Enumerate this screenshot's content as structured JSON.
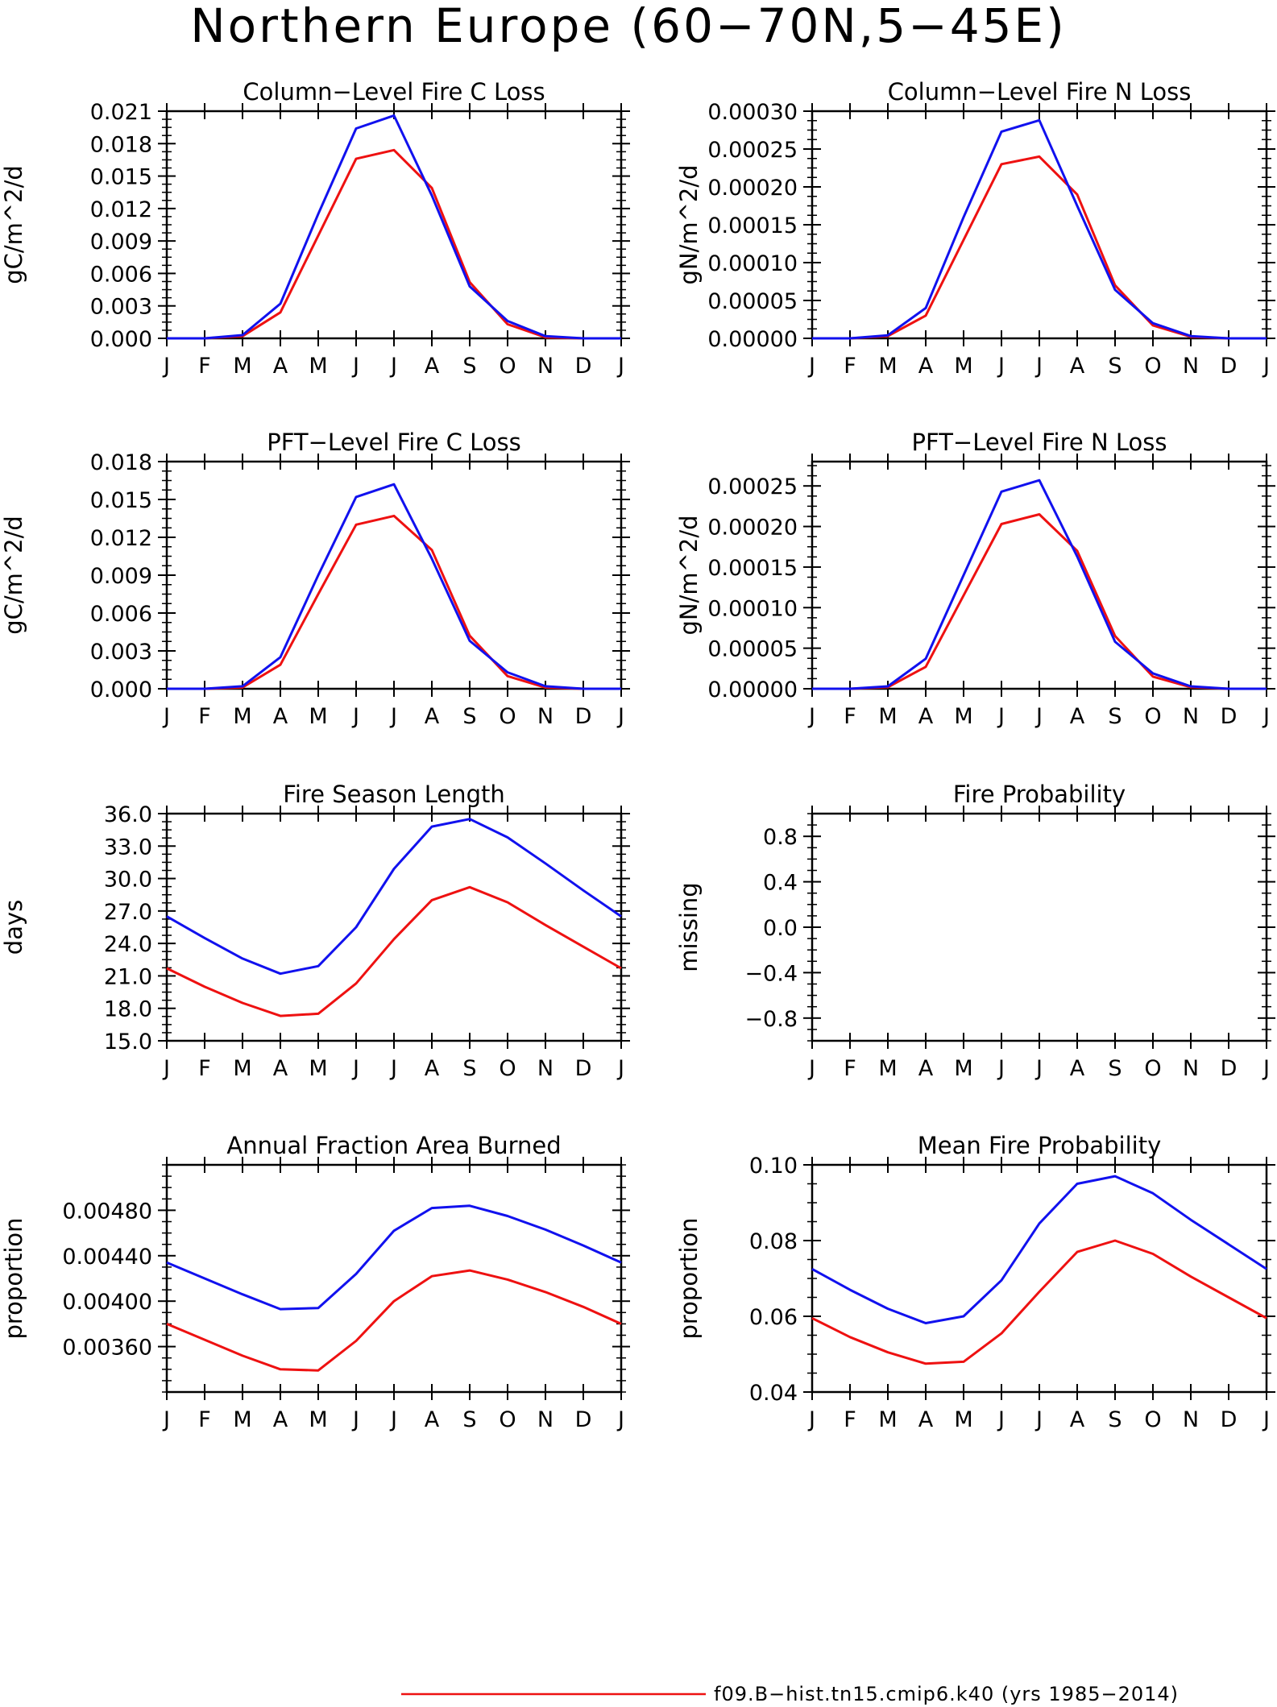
{
  "title": "Northern Europe (60−70N,5−45E)",
  "colors": {
    "run": "#ee1111",
    "control": "#1111ee",
    "axis": "#000000"
  },
  "legend": {
    "entries": [
      {
        "label": "f09.B−hist.tn15.cmip6.k40 (yrs 1985−2014)",
        "color": "#ee1111"
      }
    ]
  },
  "chart_data": [
    {
      "type": "line",
      "title": "Column−Level Fire C Loss",
      "ylabel": "gC/m^2/d",
      "xlabel": "",
      "x": [
        "J",
        "F",
        "M",
        "A",
        "M",
        "J",
        "J",
        "A",
        "S",
        "O",
        "N",
        "D",
        "J"
      ],
      "ylim": [
        0,
        0.021
      ],
      "yticks": [
        "0.000",
        "0.003",
        "0.006",
        "0.009",
        "0.012",
        "0.015",
        "0.018",
        "0.021"
      ],
      "series": [
        {
          "values": [
            0,
            0,
            0.0002,
            0.0024,
            0.0095,
            0.0166,
            0.0174,
            0.0139,
            0.0052,
            0.0013,
            0.0001,
            0,
            0
          ]
        },
        {
          "values": [
            0,
            0,
            0.0003,
            0.0032,
            0.0115,
            0.0194,
            0.0206,
            0.0132,
            0.0048,
            0.0016,
            0.0002,
            0,
            0
          ]
        }
      ]
    },
    {
      "type": "line",
      "title": "Column−Level Fire N Loss",
      "ylabel": "gN/m^2/d",
      "xlabel": "",
      "x": [
        "J",
        "F",
        "M",
        "A",
        "M",
        "J",
        "J",
        "A",
        "S",
        "O",
        "N",
        "D",
        "J"
      ],
      "ylim": [
        0,
        0.0003
      ],
      "yticks": [
        "0.00000",
        "0.00005",
        "0.00010",
        "0.00015",
        "0.00020",
        "0.00025",
        "0.00030"
      ],
      "series": [
        {
          "values": [
            0,
            0,
            3e-06,
            3e-05,
            0.00013,
            0.00023,
            0.00024,
            0.00019,
            7e-05,
            1.7e-05,
            2e-06,
            0,
            0
          ]
        },
        {
          "values": [
            0,
            0,
            4e-06,
            4e-05,
            0.00016,
            0.000273,
            0.000288,
            0.000175,
            6.4e-05,
            2e-05,
            3e-06,
            0,
            0
          ]
        }
      ]
    },
    {
      "type": "line",
      "title": "PFT−Level Fire C Loss",
      "ylabel": "gC/m^2/d",
      "xlabel": "",
      "x": [
        "J",
        "F",
        "M",
        "A",
        "M",
        "J",
        "J",
        "A",
        "S",
        "O",
        "N",
        "D",
        "J"
      ],
      "ylim": [
        0,
        0.018
      ],
      "yticks": [
        "0.000",
        "0.003",
        "0.006",
        "0.009",
        "0.012",
        "0.015",
        "0.018"
      ],
      "series": [
        {
          "values": [
            0,
            0,
            0.0001,
            0.0019,
            0.0075,
            0.013,
            0.0137,
            0.011,
            0.0042,
            0.001,
            0.0001,
            0,
            0
          ]
        },
        {
          "values": [
            0,
            0,
            0.0002,
            0.0025,
            0.009,
            0.0152,
            0.0162,
            0.0103,
            0.0038,
            0.0013,
            0.0002,
            0,
            0
          ]
        }
      ]
    },
    {
      "type": "line",
      "title": "PFT−Level Fire N Loss",
      "ylabel": "gN/m^2/d",
      "xlabel": "",
      "x": [
        "J",
        "F",
        "M",
        "A",
        "M",
        "J",
        "J",
        "A",
        "S",
        "O",
        "N",
        "D",
        "J"
      ],
      "ylim": [
        0,
        0.00028
      ],
      "yticks": [
        "0.00000",
        "0.00005",
        "0.00010",
        "0.00015",
        "0.00020",
        "0.00025"
      ],
      "series": [
        {
          "values": [
            0,
            0,
            2e-06,
            2.7e-05,
            0.000115,
            0.000203,
            0.000215,
            0.00017,
            6.5e-05,
            1.5e-05,
            2e-06,
            0,
            0
          ]
        },
        {
          "values": [
            0,
            0,
            3e-06,
            3.7e-05,
            0.00014,
            0.000243,
            0.000257,
            0.000163,
            5.8e-05,
            1.9e-05,
            3e-06,
            0,
            0
          ]
        }
      ]
    },
    {
      "type": "line",
      "title": "Fire Season Length",
      "ylabel": "days",
      "xlabel": "",
      "x": [
        "J",
        "F",
        "M",
        "A",
        "M",
        "J",
        "J",
        "A",
        "S",
        "O",
        "N",
        "D",
        "J"
      ],
      "ylim": [
        15,
        36
      ],
      "yticks": [
        "15.0",
        "18.0",
        "21.0",
        "24.0",
        "27.0",
        "30.0",
        "33.0",
        "36.0"
      ],
      "series": [
        {
          "values": [
            21.7,
            20.0,
            18.5,
            17.3,
            17.5,
            20.3,
            24.4,
            28.0,
            29.2,
            27.8,
            25.7,
            23.7,
            21.7
          ]
        },
        {
          "values": [
            26.5,
            24.5,
            22.6,
            21.2,
            21.9,
            25.5,
            30.9,
            34.8,
            35.5,
            33.8,
            31.4,
            28.9,
            26.5
          ]
        }
      ]
    },
    {
      "type": "line",
      "title": "Fire Probability",
      "ylabel": "missing",
      "xlabel": "",
      "x": [
        "J",
        "F",
        "M",
        "A",
        "M",
        "J",
        "J",
        "A",
        "S",
        "O",
        "N",
        "D",
        "J"
      ],
      "ylim": [
        -1,
        1
      ],
      "yticks": [
        "−0.8",
        "−0.4",
        "0.0",
        "0.4",
        "0.8"
      ],
      "series": []
    },
    {
      "type": "line",
      "title": "Annual Fraction Area Burned",
      "ylabel": "proportion",
      "xlabel": "",
      "x": [
        "J",
        "F",
        "M",
        "A",
        "M",
        "J",
        "J",
        "A",
        "S",
        "O",
        "N",
        "D",
        "J"
      ],
      "ylim": [
        0.0032,
        0.0052
      ],
      "yticks": [
        "0.00360",
        "0.00400",
        "0.00440",
        "0.00480"
      ],
      "series": [
        {
          "values": [
            0.0038,
            0.00366,
            0.00352,
            0.0034,
            0.00339,
            0.00365,
            0.004,
            0.00422,
            0.00427,
            0.00419,
            0.00408,
            0.00395,
            0.0038
          ]
        },
        {
          "values": [
            0.00434,
            0.0042,
            0.00406,
            0.00393,
            0.00394,
            0.00424,
            0.00462,
            0.00482,
            0.00484,
            0.00475,
            0.00463,
            0.00449,
            0.00434
          ]
        }
      ]
    },
    {
      "type": "line",
      "title": "Mean Fire Probability",
      "ylabel": "proportion",
      "xlabel": "",
      "x": [
        "J",
        "F",
        "M",
        "A",
        "M",
        "J",
        "J",
        "A",
        "S",
        "O",
        "N",
        "D",
        "J"
      ],
      "ylim": [
        0.04,
        0.1
      ],
      "yticks": [
        "0.04",
        "0.06",
        "0.08",
        "0.10"
      ],
      "series": [
        {
          "values": [
            0.0595,
            0.0545,
            0.0505,
            0.0475,
            0.048,
            0.0555,
            0.0665,
            0.077,
            0.08,
            0.0765,
            0.0705,
            0.065,
            0.0595
          ]
        },
        {
          "values": [
            0.0725,
            0.067,
            0.062,
            0.0582,
            0.06,
            0.0695,
            0.0845,
            0.095,
            0.097,
            0.0925,
            0.0855,
            0.079,
            0.0725
          ]
        }
      ]
    }
  ]
}
